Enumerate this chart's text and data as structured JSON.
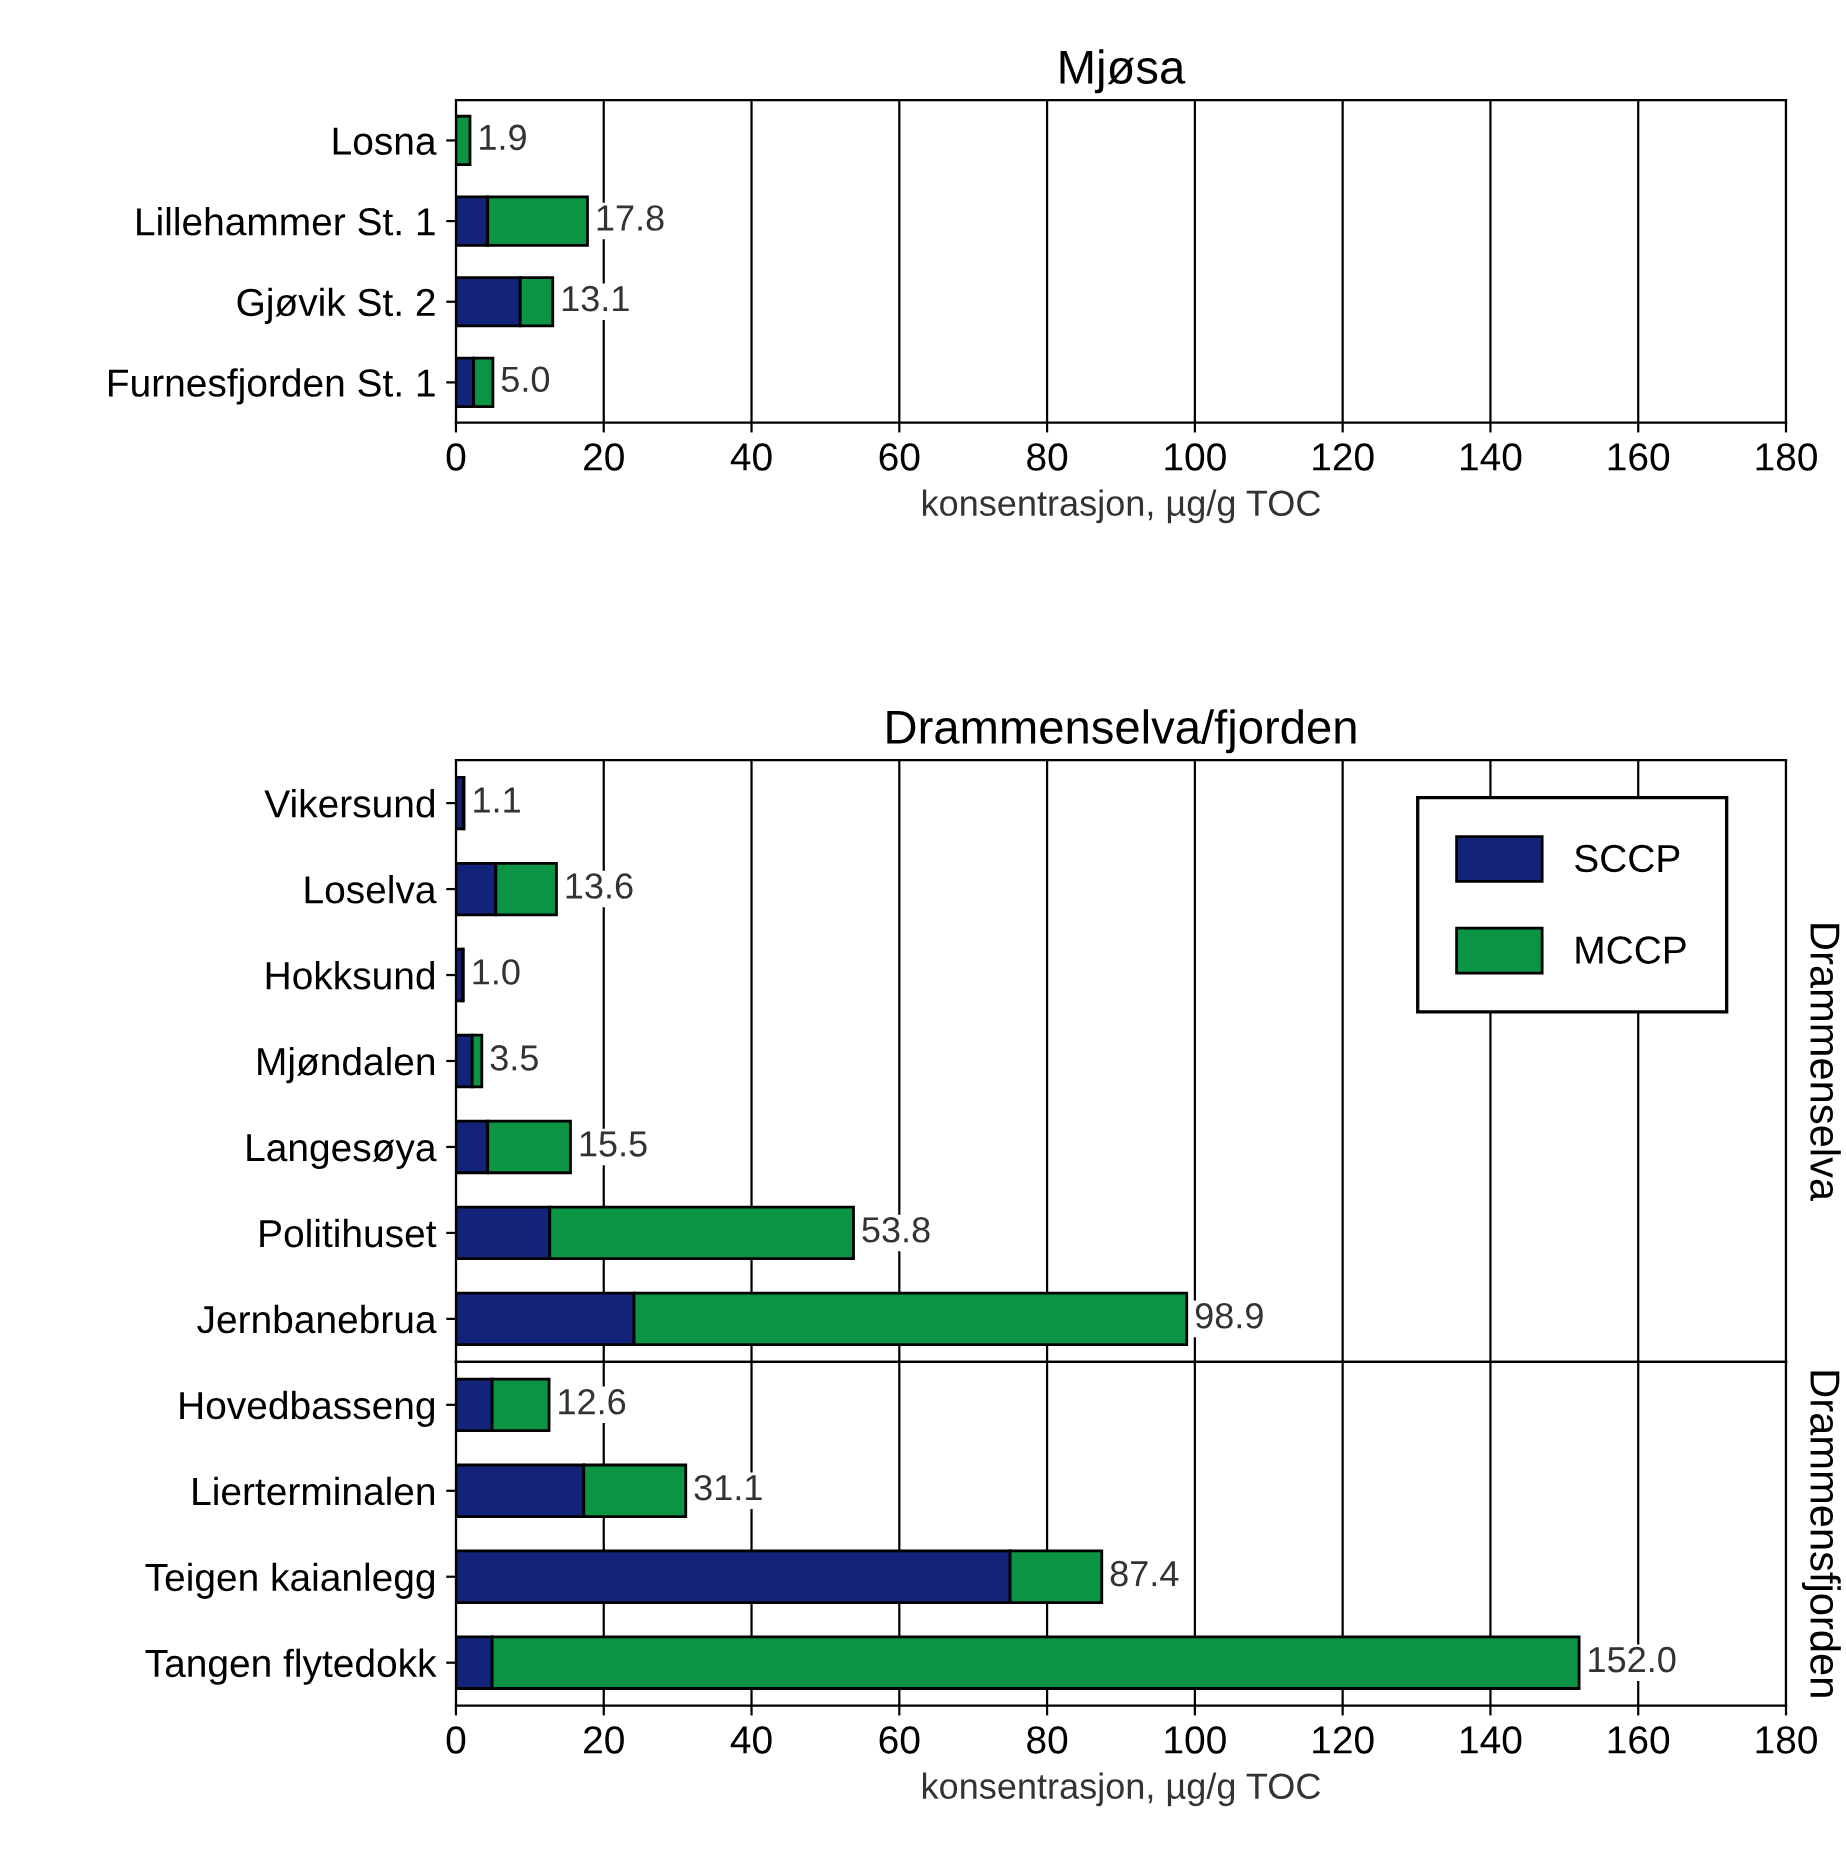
{
  "chart_data": [
    {
      "type": "bar",
      "orientation": "horizontal",
      "stacked": true,
      "title": "Mjøsa",
      "xlabel": "konsentrasjon, µg/g TOC",
      "categories": [
        "Losna",
        "Lillehammer St. 1",
        "Gjøvik St. 2",
        "Furnesfjorden St. 1"
      ],
      "series": [
        {
          "color": "#14237a",
          "values": [
            null,
            4.3,
            8.7,
            2.4
          ]
        },
        {
          "color": "#0a9444",
          "values": [
            1.9,
            13.5,
            4.4,
            2.6
          ]
        }
      ],
      "totals": [
        "1.9",
        "17.8",
        "13.1",
        "5.0"
      ],
      "xlim": [
        0,
        180
      ],
      "xticks": [
        0,
        20,
        40,
        60,
        80,
        100,
        120,
        140,
        160,
        180
      ],
      "grid": "x",
      "legend": false
    },
    {
      "type": "bar",
      "orientation": "horizontal",
      "stacked": true,
      "title": "Drammenselva/fjorden",
      "categories": [
        "Vikersund",
        "Loselva",
        "Hokksund",
        "Mjøndalen",
        "Langesøya",
        "Politihuset",
        "Jernbanebrua"
      ],
      "series": [
        {
          "name": "SCCP",
          "color": "#14237a",
          "values": [
            1.0,
            5.4,
            0.9,
            2.2,
            4.3,
            12.7,
            24.1
          ]
        },
        {
          "name": "MCCP",
          "color": "#0a9444",
          "values": [
            0.1,
            8.2,
            0.1,
            1.3,
            11.2,
            41.1,
            74.8
          ]
        }
      ],
      "totals": [
        "1.1",
        "13.6",
        "1.0",
        "3.5",
        "15.5",
        "53.8",
        "98.9"
      ],
      "annotations": [
        "Drammenselva"
      ],
      "xlim": [
        0,
        180
      ],
      "xticks": [
        0,
        20,
        40,
        60,
        80,
        100,
        120,
        140,
        160,
        180
      ],
      "tick_labels": "y",
      "grid": "x",
      "legend": "top right"
    },
    {
      "type": "bar",
      "orientation": "horizontal",
      "stacked": true,
      "xlabel": "konsentrasjon, µg/g TOC",
      "categories": [
        "Hovedbasseng",
        "Lierterminalen",
        "Teigen kaianlegg",
        "Tangen flytedokk"
      ],
      "series": [
        {
          "color": "#14237a",
          "values": [
            4.9,
            17.3,
            75.0,
            4.9
          ]
        },
        {
          "color": "#0a9444",
          "values": [
            7.7,
            13.8,
            12.4,
            147.1
          ]
        }
      ],
      "totals": [
        "12.6",
        "31.1",
        "87.4",
        "152.0"
      ],
      "annotations": [
        "Drammensfjorden"
      ],
      "xlim": [
        0,
        180
      ],
      "xticks": [
        0,
        20,
        40,
        60,
        80,
        100,
        120,
        140,
        160,
        180
      ],
      "grid": "x"
    }
  ]
}
